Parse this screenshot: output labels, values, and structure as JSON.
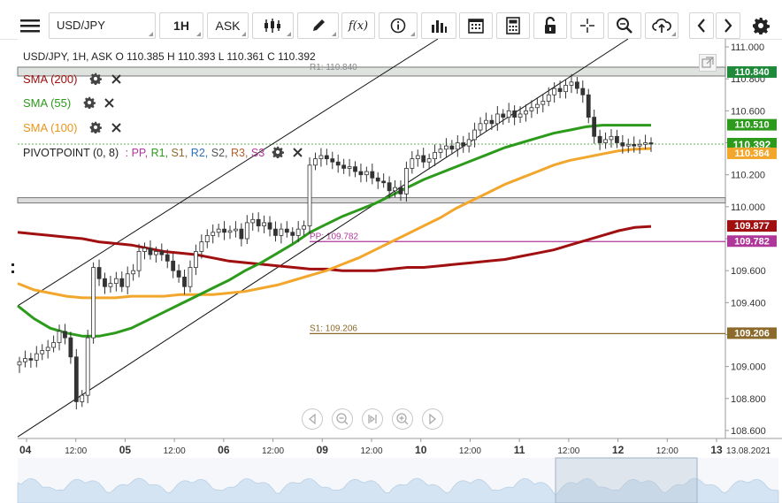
{
  "toolbar": {
    "symbol": "USD/JPY",
    "timeframe": "1H",
    "price_type": "ASK"
  },
  "ohlc_line": "USD/JPY, 1H, ASK   O  110.385 H  110.393 L  110.361 C  110.392",
  "indicators": [
    {
      "label": "SMA (200)",
      "color": "#a01010",
      "period": 200
    },
    {
      "label": "SMA (55)",
      "color": "#2c9a1b",
      "period": 55
    },
    {
      "label": "SMA (100)",
      "color": "#f2a72c",
      "period": 100
    }
  ],
  "pivot": {
    "label": "PIVOTPOINT (0, 8)",
    "sep": ":",
    "parts": [
      {
        "text": "PP,",
        "color": "#b0379a"
      },
      {
        "text": "R1,",
        "color": "#2c9a1b"
      },
      {
        "text": "S1,",
        "color": "#8b6a2b"
      },
      {
        "text": "R2,",
        "color": "#2f6fb5"
      },
      {
        "text": "S2,",
        "color": "#555555"
      },
      {
        "text": "R3,",
        "color": "#b06030"
      },
      {
        "text": "S3",
        "color": "#b0379a"
      }
    ]
  },
  "chart_data": {
    "type": "candlestick",
    "instrument": "USD/JPY",
    "interval": "1H",
    "y_ticks": [
      108.6,
      108.8,
      109.0,
      109.2,
      109.4,
      109.6,
      109.8,
      110.0,
      110.2,
      110.4,
      110.6,
      110.8,
      111.0
    ],
    "y_tick_labels": [
      "108.600",
      "108.800",
      "109.000",
      "109.200",
      "109.400",
      "109.600",
      "109.800",
      "110.000",
      "110.200",
      "110.400",
      "110.600",
      "110.800",
      "111.000"
    ],
    "ylim": [
      108.55,
      111.05
    ],
    "x_labels": [
      "04",
      "12:00",
      "05",
      "12:00",
      "06",
      "12:00",
      "09",
      "12:00",
      "10",
      "12:00",
      "11",
      "12:00",
      "12",
      "12:00",
      "13"
    ],
    "x_label_bold": [
      true,
      false,
      true,
      false,
      true,
      false,
      true,
      false,
      true,
      false,
      true,
      false,
      true,
      false,
      true
    ],
    "x_last_date": "13.08.2021",
    "last_price": 110.392,
    "price_labels": [
      {
        "text": "110.840",
        "value": 110.84,
        "color": "#1e8a3a"
      },
      {
        "text": "110.510",
        "value": 110.51,
        "color": "#2c9a1b"
      },
      {
        "text": "110.392",
        "value": 110.392,
        "color": "#2c9a1b"
      },
      {
        "text": "110.364",
        "value": 110.364,
        "color": "#f2a72c"
      },
      {
        "text": "109.877",
        "value": 109.877,
        "color": "#a01010"
      },
      {
        "text": "109.782",
        "value": 109.782,
        "color": "#b0379a"
      },
      {
        "text": "109.206",
        "value": 109.206,
        "color": "#8b6a2b"
      }
    ],
    "pivot_levels": [
      {
        "name": "R1: 110.840",
        "value": 110.84,
        "color": "#888888"
      },
      {
        "name": "PP: 109.782",
        "value": 109.782,
        "color": "#b0379a"
      },
      {
        "name": "S1: 109.206",
        "value": 109.206,
        "color": "#8b6a2b"
      }
    ],
    "support_zone": {
      "value": 110.04
    },
    "candles_close": [
      109.03,
      109.05,
      109.04,
      109.08,
      109.1,
      109.12,
      109.15,
      109.22,
      109.18,
      109.06,
      108.78,
      108.82,
      109.18,
      109.62,
      109.55,
      109.5,
      109.52,
      109.55,
      109.5,
      109.58,
      109.6,
      109.72,
      109.74,
      109.7,
      109.72,
      109.7,
      109.66,
      109.6,
      109.56,
      109.5,
      109.62,
      109.72,
      109.78,
      109.82,
      109.84,
      109.86,
      109.84,
      109.85,
      109.86,
      109.8,
      109.9,
      109.92,
      109.88,
      109.9,
      109.86,
      109.82,
      109.86,
      109.84,
      109.82,
      109.86,
      109.88,
      110.26,
      110.3,
      110.32,
      110.3,
      110.28,
      110.26,
      110.24,
      110.25,
      110.22,
      110.2,
      110.22,
      110.18,
      110.16,
      110.15,
      110.1,
      110.12,
      110.08,
      110.24,
      110.3,
      110.32,
      110.28,
      110.3,
      110.34,
      110.36,
      110.38,
      110.36,
      110.4,
      110.38,
      110.42,
      110.48,
      110.52,
      110.54,
      110.52,
      110.58,
      110.56,
      110.6,
      110.56,
      110.58,
      110.6,
      110.62,
      110.64,
      110.66,
      110.7,
      110.74,
      110.72,
      110.76,
      110.78,
      110.74,
      110.7,
      110.56,
      110.44,
      110.4,
      110.42,
      110.44,
      110.4,
      110.38,
      110.39,
      110.38,
      110.39,
      110.4,
      110.392
    ],
    "sma_200": [
      109.84,
      109.83,
      109.82,
      109.81,
      109.8,
      109.78,
      109.77,
      109.76,
      109.74,
      109.72,
      109.71,
      109.7,
      109.68,
      109.66,
      109.65,
      109.64,
      109.63,
      109.62,
      109.61,
      109.61,
      109.6,
      109.6,
      109.6,
      109.61,
      109.62,
      109.62,
      109.63,
      109.64,
      109.65,
      109.66,
      109.67,
      109.69,
      109.71,
      109.73,
      109.76,
      109.79,
      109.82,
      109.85,
      109.87,
      109.877
    ],
    "sma_55": [
      109.38,
      109.3,
      109.24,
      109.21,
      109.19,
      109.19,
      109.21,
      109.24,
      109.29,
      109.34,
      109.39,
      109.44,
      109.49,
      109.54,
      109.6,
      109.65,
      109.71,
      109.77,
      109.84,
      109.89,
      109.94,
      109.98,
      110.02,
      110.07,
      110.12,
      110.17,
      110.21,
      110.25,
      110.29,
      110.33,
      110.37,
      110.4,
      110.43,
      110.46,
      110.48,
      110.5,
      110.51,
      110.51,
      110.51,
      110.51
    ],
    "sma_100": [
      109.52,
      109.48,
      109.46,
      109.44,
      109.43,
      109.43,
      109.43,
      109.44,
      109.44,
      109.44,
      109.45,
      109.45,
      109.45,
      109.46,
      109.47,
      109.49,
      109.51,
      109.54,
      109.57,
      109.6,
      109.64,
      109.68,
      109.73,
      109.78,
      109.83,
      109.88,
      109.93,
      109.99,
      110.04,
      110.09,
      110.14,
      110.18,
      110.22,
      110.26,
      110.29,
      110.31,
      110.33,
      110.35,
      110.36,
      110.364
    ],
    "channel_upper": [
      [
        108.98,
        109.96
      ],
      [
        111.0,
        110.0
      ]
    ],
    "channel_lower": [
      [
        108.6,
        108.5
      ],
      [
        110.92,
        111.03
      ]
    ]
  }
}
